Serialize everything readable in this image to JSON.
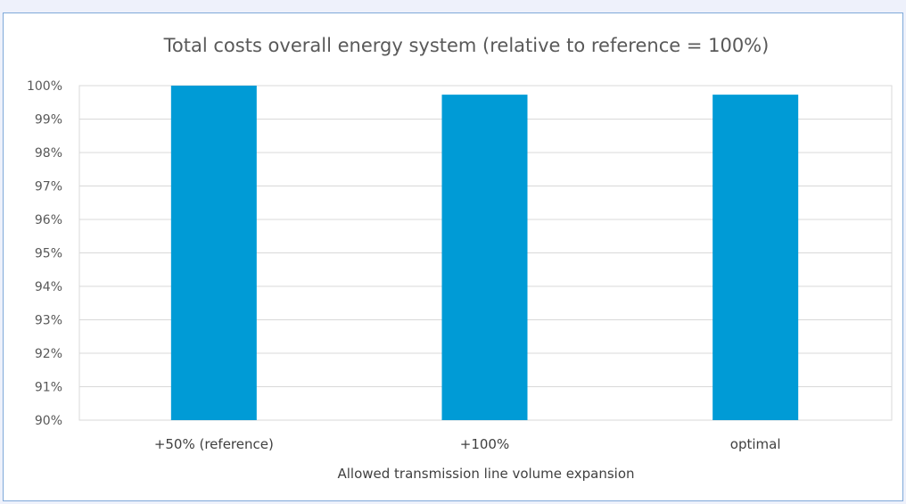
{
  "chart_data": {
    "type": "bar",
    "title": "Total costs overall energy system (relative to reference = 100%)",
    "xlabel": "Allowed transmission line volume expansion",
    "ylabel": "",
    "categories": [
      "+50% (reference)",
      "+100%",
      "optimal"
    ],
    "values": [
      100.0,
      99.73,
      99.73
    ],
    "ylim": [
      90,
      100
    ],
    "yticks": [
      90,
      91,
      92,
      93,
      94,
      95,
      96,
      97,
      98,
      99,
      100
    ],
    "ytick_labels": [
      "90%",
      "91%",
      "92%",
      "93%",
      "94%",
      "95%",
      "96%",
      "97%",
      "98%",
      "99%",
      "100%"
    ],
    "grid": true,
    "legend": "none",
    "bar_color": "#009bd6"
  }
}
